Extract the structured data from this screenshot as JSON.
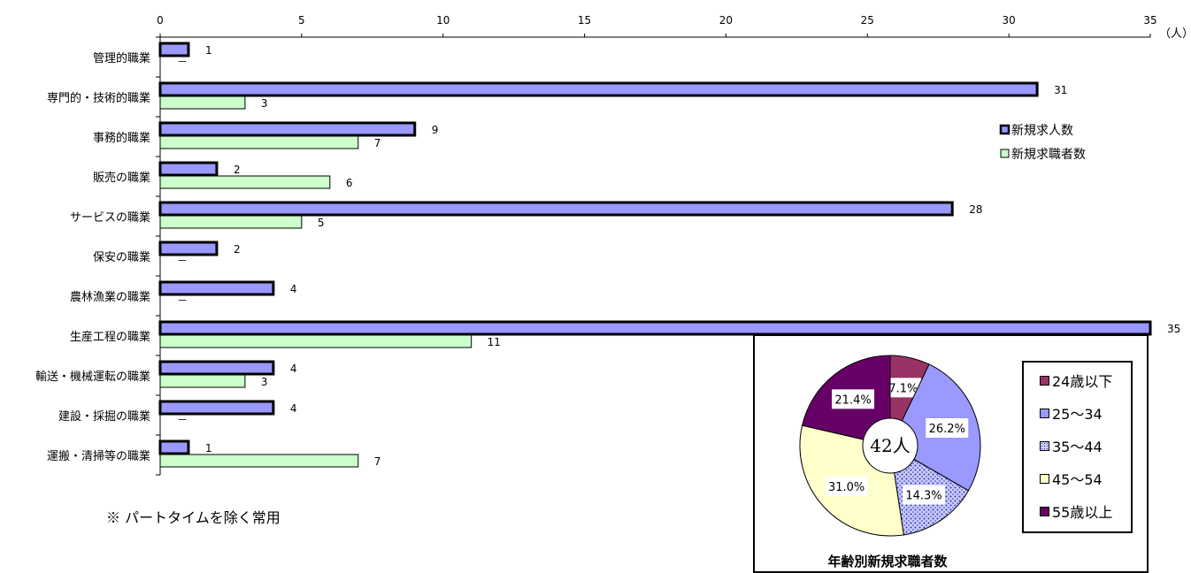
{
  "chart_data": [
    {
      "type": "bar",
      "orientation": "horizontal",
      "categories": [
        "管理的職業",
        "専門的・技術的職業",
        "事務的職業",
        "販売の職業",
        "サービスの職業",
        "保安の職業",
        "農林漁業の職業",
        "生産工程の職業",
        "輸送・機械運転の職業",
        "建設・採掘の職業",
        "運搬・清掃等の職業"
      ],
      "series": [
        {
          "name": "新規求人数",
          "color": "#9999ff",
          "values": [
            1,
            31,
            9,
            2,
            28,
            2,
            4,
            35,
            4,
            4,
            1
          ]
        },
        {
          "name": "新規求職者数",
          "color": "#ccffcc",
          "values": [
            null,
            3,
            7,
            6,
            5,
            null,
            null,
            11,
            3,
            null,
            7
          ]
        }
      ],
      "data_labels": [
        [
          "1",
          "31",
          "9",
          "2",
          "28",
          "2",
          "4",
          "35",
          "4",
          "4",
          "1"
        ],
        [
          "－",
          "3",
          "7",
          "6",
          "5",
          "－",
          "－",
          "11",
          "3",
          "－",
          "7"
        ]
      ],
      "xlim": [
        0,
        35
      ],
      "xticks": [
        0,
        5,
        10,
        15,
        20,
        25,
        30,
        35
      ],
      "unit_label": "（人）",
      "legend_position": "right"
    },
    {
      "type": "pie",
      "title": "年齢別新規求職者数",
      "center_label": "42人",
      "slices": [
        {
          "name": "24歳以下",
          "value": 7.1,
          "label": "7.1%",
          "color": "#993366"
        },
        {
          "name": "25～34",
          "value": 26.2,
          "label": "26.2%",
          "color": "#9999ff"
        },
        {
          "name": "35～44",
          "value": 14.3,
          "label": "14.3%",
          "color": "#b0b8ff",
          "pattern": true
        },
        {
          "name": "45～54",
          "value": 31.0,
          "label": "31.0%",
          "color": "#ffffcc"
        },
        {
          "name": "55歳以上",
          "value": 21.4,
          "label": "21.4%",
          "color": "#660066"
        }
      ]
    }
  ],
  "note": "※ パートタイムを除く常用"
}
